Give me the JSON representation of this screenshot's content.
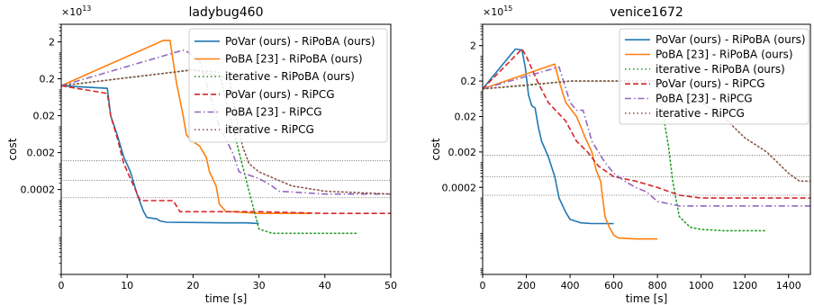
{
  "chart_data": [
    {
      "type": "line",
      "title": "ladybug460",
      "xlabel": "time [s]",
      "ylabel": "cost",
      "exponent": "×10^13",
      "exponent_base": "×10",
      "exponent_power": "13",
      "x_ticks": [
        0,
        10,
        20,
        30,
        40,
        50
      ],
      "xlim": [
        0,
        50
      ],
      "y_scale": "log",
      "ylim": [
        1e-06,
        6
      ],
      "y_ticks": [
        2,
        0.2,
        0.02,
        0.002,
        0.0002
      ],
      "y_tick_labels": [
        "2",
        "0.2",
        "0.02",
        "0.002",
        "0.0002"
      ],
      "hlines": [
        0.0012,
        0.00035,
        0.00012
      ],
      "grid": false,
      "legend_position": "top-right",
      "series": [
        {
          "name": "PoVar (ours) - RiPoBA (ours)",
          "color": "#1f77b4",
          "dash": "solid",
          "x": [
            0,
            7,
            7.5,
            8.5,
            9.5,
            10.5,
            11.5,
            12.5,
            13,
            14.5,
            15,
            16,
            25,
            28,
            30
          ],
          "y": [
            0.13,
            0.11,
            0.02,
            0.006,
            0.0015,
            0.0006,
            0.00015,
            5e-05,
            3.5e-05,
            3.2e-05,
            2.8e-05,
            2.6e-05,
            2.5e-05,
            2.5e-05,
            2.4e-05
          ]
        },
        {
          "name": "PoBA [23] - RiPoBA (ours)",
          "color": "#ff7f0e",
          "dash": "solid",
          "x": [
            0,
            15.5,
            16.5,
            17.5,
            18.5,
            19,
            20,
            21,
            22,
            22.5,
            23.5,
            24,
            25,
            26,
            30,
            35,
            38
          ],
          "y": [
            0.13,
            2.2,
            2.2,
            0.15,
            0.02,
            0.006,
            0.004,
            0.003,
            0.0015,
            0.0006,
            0.00025,
            8e-05,
            5e-05,
            5e-05,
            4.5e-05,
            4.5e-05,
            4.5e-05
          ]
        },
        {
          "name": "iterative - RiPoBA (ours)",
          "color": "#2ca02c",
          "dash": "dot",
          "x": [
            0,
            20,
            24,
            25,
            26,
            27,
            28,
            29,
            30,
            32,
            40,
            45
          ],
          "y": [
            0.13,
            0.35,
            0.3,
            0.05,
            0.01,
            0.002,
            0.0004,
            8e-05,
            1.7e-05,
            1.3e-05,
            1.3e-05,
            1.3e-05
          ]
        },
        {
          "name": "PoVar (ours) - RiPCG",
          "color": "#d62728",
          "dash": "dash",
          "x": [
            0,
            7,
            7.5,
            8.5,
            9.5,
            11,
            12,
            17,
            18,
            30,
            40,
            50
          ],
          "y": [
            0.13,
            0.08,
            0.02,
            0.005,
            0.001,
            0.00025,
            0.0001,
            0.0001,
            5e-05,
            5e-05,
            4.5e-05,
            4.5e-05
          ]
        },
        {
          "name": "PoBA [23] - RiPCG",
          "color": "#9467bd",
          "dash": "dashdot",
          "x": [
            0,
            18.5,
            19.5,
            21,
            23,
            24,
            26,
            27,
            30,
            32,
            33,
            40,
            50
          ],
          "y": [
            0.13,
            1.2,
            1.0,
            0.6,
            0.04,
            0.01,
            0.002,
            0.0006,
            0.0004,
            0.00025,
            0.00018,
            0.00015,
            0.00015
          ]
        },
        {
          "name": "iterative - RiPCG",
          "color": "#8c564b",
          "dash": "dot",
          "x": [
            0,
            20,
            25.5,
            26.5,
            27.5,
            28.5,
            30,
            35,
            40,
            50
          ],
          "y": [
            0.13,
            0.35,
            0.2,
            0.02,
            0.003,
            0.001,
            0.0006,
            0.00025,
            0.00018,
            0.00015
          ]
        }
      ]
    },
    {
      "type": "line",
      "title": "venice1672",
      "xlabel": "time [s]",
      "ylabel": "cost",
      "exponent": "×10^15",
      "exponent_base": "×10",
      "exponent_power": "15",
      "x_ticks": [
        0,
        200,
        400,
        600,
        800,
        1000,
        1200,
        1400
      ],
      "xlim": [
        0,
        1500
      ],
      "y_scale": "log",
      "ylim": [
        7e-07,
        8
      ],
      "y_ticks": [
        2,
        0.2,
        0.02,
        0.002,
        0.0002
      ],
      "y_tick_labels": [
        "2",
        "0.2",
        "0.02",
        "0.002",
        "0.0002"
      ],
      "hlines": [
        0.0016,
        0.0004,
        0.00012
      ],
      "grid": false,
      "legend_position": "top-right",
      "series": [
        {
          "name": "PoVar (ours) - RiPoBA (ours)",
          "color": "#1f77b4",
          "dash": "solid",
          "x": [
            0,
            150,
            180,
            195,
            210,
            225,
            240,
            255,
            270,
            300,
            330,
            350,
            380,
            400,
            450,
            500,
            550,
            600
          ],
          "y": [
            0.12,
            1.6,
            1.5,
            0.5,
            0.08,
            0.04,
            0.035,
            0.01,
            0.004,
            0.0015,
            0.0004,
            0.0001,
            4e-05,
            2.5e-05,
            2e-05,
            1.9e-05,
            1.9e-05,
            1.9e-05
          ]
        },
        {
          "name": "PoBA [23] - RiPoBA (ours)",
          "color": "#ff7f0e",
          "dash": "solid",
          "x": [
            0,
            330,
            350,
            380,
            430,
            470,
            500,
            520,
            540,
            560,
            580,
            600,
            620,
            700,
            800
          ],
          "y": [
            0.12,
            0.6,
            0.2,
            0.05,
            0.02,
            0.005,
            0.002,
            0.0006,
            0.0003,
            3e-05,
            1.5e-05,
            9e-06,
            7.5e-06,
            7e-06,
            7e-06
          ]
        },
        {
          "name": "iterative - RiPoBA (ours)",
          "color": "#2ca02c",
          "dash": "dot",
          "x": [
            0,
            200,
            400,
            800,
            850,
            870,
            900,
            950,
            1000,
            1100,
            1300
          ],
          "y": [
            0.12,
            0.15,
            0.2,
            0.2,
            0.003,
            0.0003,
            3e-05,
            1.5e-05,
            1.3e-05,
            1.2e-05,
            1.2e-05
          ]
        },
        {
          "name": "PoVar (ours) - RiPCG",
          "color": "#d62728",
          "dash": "dash",
          "x": [
            0,
            180,
            200,
            250,
            300,
            380,
            430,
            480,
            530,
            600,
            700,
            800,
            900,
            1000,
            1500
          ],
          "y": [
            0.12,
            1.6,
            1.0,
            0.2,
            0.05,
            0.015,
            0.004,
            0.002,
            0.0008,
            0.0004,
            0.0003,
            0.0002,
            0.00012,
            0.0001,
            0.0001
          ]
        },
        {
          "name": "PoBA [23] - RiPCG",
          "color": "#9467bd",
          "dash": "dashdot",
          "x": [
            0,
            350,
            400,
            430,
            460,
            500,
            560,
            600,
            650,
            700,
            750,
            800,
            900,
            1000,
            1500
          ],
          "y": [
            0.12,
            0.5,
            0.05,
            0.03,
            0.03,
            0.004,
            0.001,
            0.0005,
            0.0003,
            0.0002,
            0.00015,
            8e-05,
            6e-05,
            6e-05,
            6e-05
          ]
        },
        {
          "name": "iterative - RiPCG",
          "color": "#8c564b",
          "dash": "dot",
          "x": [
            0,
            400,
            800,
            900,
            1000,
            1100,
            1200,
            1300,
            1350,
            1400,
            1450,
            1500
          ],
          "y": [
            0.12,
            0.2,
            0.2,
            0.1,
            0.05,
            0.02,
            0.005,
            0.002,
            0.001,
            0.0005,
            0.0003,
            0.0003
          ]
        }
      ]
    }
  ]
}
